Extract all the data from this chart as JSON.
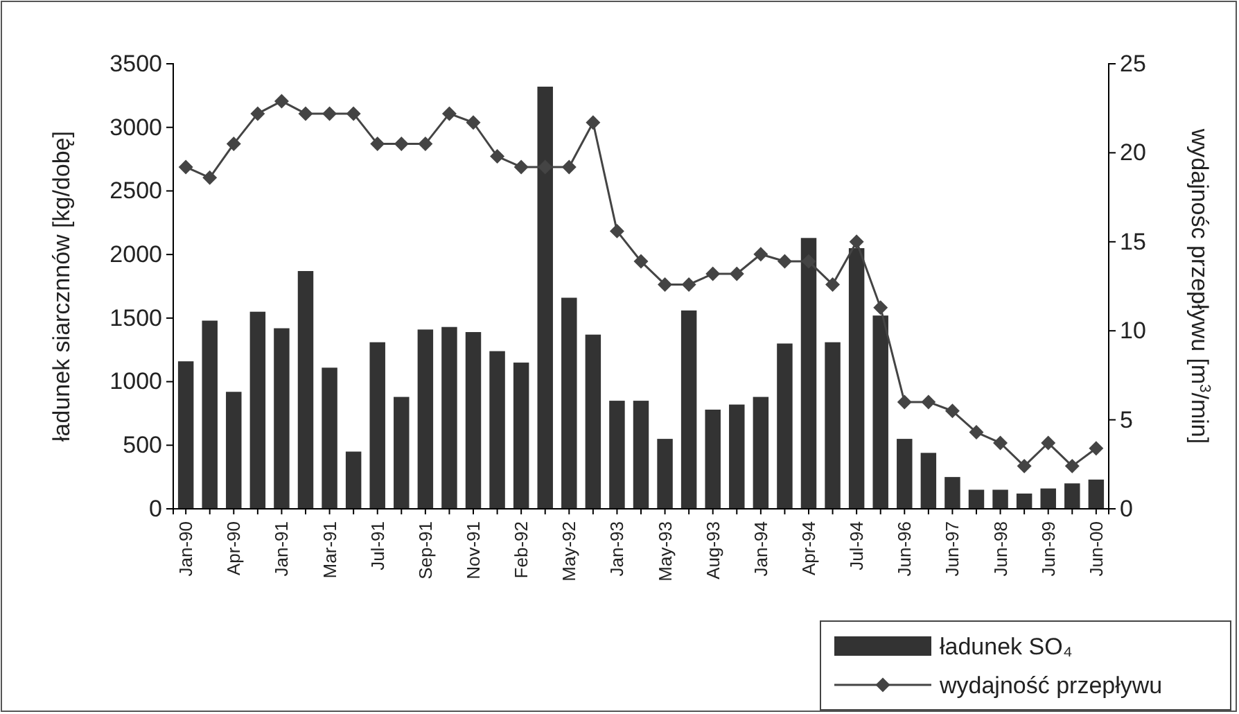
{
  "chart_data": {
    "type": "bar",
    "ylabel": "ładunek siarcznnów [kg/dobę]",
    "y2label": "wydajnośc przepływu [m$^{3}$/min]",
    "categories": [
      "Jan-90",
      null,
      "Apr-90",
      null,
      "Jan-91",
      null,
      "Mar-91",
      null,
      "Jul-91",
      null,
      "Sep-91",
      null,
      "Nov-91",
      null,
      "Feb-92",
      null,
      "May-92",
      null,
      "Jan-93",
      null,
      "May-93",
      null,
      "Aug-93",
      null,
      "Jan-94",
      null,
      "Apr-94",
      null,
      "Jul-94",
      null,
      "Jun-96",
      null,
      "Jun-97",
      null,
      "Jun-98",
      null,
      "Jun-99",
      null,
      "Jun-00"
    ],
    "series": [
      {
        "name": "ładunek SO₄",
        "color": "#333333",
        "values": [
          1160,
          1480,
          920,
          1550,
          1420,
          1870,
          1110,
          450,
          1310,
          880,
          1410,
          1430,
          1390,
          1240,
          1150,
          3320,
          1660,
          1370,
          850,
          850,
          550,
          1560,
          780,
          820,
          880,
          1300,
          2130,
          1310,
          2050,
          1520,
          550,
          440,
          250,
          150,
          150,
          120,
          160,
          200,
          230
        ]
      },
      {
        "name": "wydajność przepływu",
        "type": "line",
        "axis": "y2",
        "color": "#444444",
        "marker": "diamond",
        "values": [
          19.2,
          18.6,
          20.5,
          22.2,
          22.9,
          22.2,
          22.2,
          22.2,
          20.5,
          20.5,
          20.5,
          22.2,
          21.7,
          19.8,
          19.2,
          19.2,
          19.2,
          21.7,
          15.6,
          13.9,
          12.6,
          12.6,
          13.2,
          13.2,
          14.3,
          13.9,
          13.9,
          12.6,
          15.0,
          11.3,
          6.0,
          6.0,
          5.5,
          4.3,
          3.7,
          2.4,
          3.7,
          2.4,
          3.4
        ]
      }
    ],
    "ylim": [
      0,
      3500
    ],
    "yticks": [
      0,
      500,
      1000,
      1500,
      2000,
      2500,
      3000,
      3500
    ],
    "y2lim": [
      0,
      25
    ],
    "y2ticks": [
      0,
      5,
      10,
      15,
      20,
      25
    ],
    "grid": false,
    "legend": "bottom right"
  }
}
